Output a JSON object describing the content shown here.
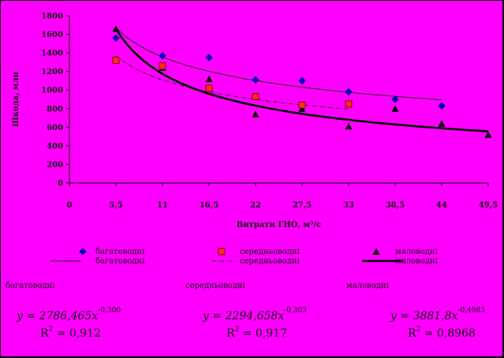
{
  "chart_data": {
    "type": "scatter",
    "ylabel": "Шкода, млн",
    "xlabel": "Витрати ГНО, м³/с",
    "x_ticks": [
      "0",
      "5,5",
      "11",
      "16,5",
      "22",
      "27,5",
      "33",
      "38,5",
      "44",
      "49,5"
    ],
    "y_ticks": [
      "0",
      "200",
      "400",
      "600",
      "800",
      "1000",
      "1200",
      "1400",
      "1600",
      "1800"
    ],
    "xlim": [
      0,
      49.5
    ],
    "ylim": [
      0,
      1800
    ],
    "grid": false,
    "series": [
      {
        "name": "багатоводні",
        "color": "#0000cc",
        "marker": "diamond",
        "x": [
          5.5,
          11,
          16.5,
          22,
          27.5,
          33,
          38.5,
          44
        ],
        "y": [
          1560,
          1370,
          1350,
          1110,
          1100,
          980,
          900,
          830
        ],
        "trend": {
          "name": "багатоводні",
          "a": 2786.465,
          "b": -0.3,
          "x_range": [
            5.5,
            44
          ],
          "style": "solid-thin",
          "color": "#222222"
        }
      },
      {
        "name": "середньоводні",
        "color": "#ff2a1a",
        "marker": "square",
        "x": [
          5.5,
          11,
          16.5,
          22,
          27.5,
          33
        ],
        "y": [
          1320,
          1260,
          1020,
          930,
          840,
          850
        ],
        "trend": {
          "name": "середньоводні",
          "a": 2294.658,
          "b": -0.303,
          "x_range": [
            5.5,
            33
          ],
          "style": "dash-dot",
          "color": "#222222"
        }
      },
      {
        "name": "маловодні",
        "color": "#000000",
        "marker": "triangle",
        "x": [
          5.5,
          11,
          16.5,
          22,
          27.5,
          33,
          38.5,
          44,
          49.5
        ],
        "y": [
          1660,
          1240,
          1120,
          740,
          800,
          610,
          800,
          640,
          520
        ],
        "trend": {
          "name": "маловодні",
          "a": 3881.8,
          "b": -0.4983,
          "x_range": [
            5.5,
            49.5
          ],
          "style": "solid-thick",
          "color": "#000000"
        }
      }
    ]
  },
  "equations": [
    {
      "name": "багатоводні",
      "formula": "y = 2786,465x",
      "exponent": "-0,300",
      "r2": "= 0,912"
    },
    {
      "name": "середньоводні",
      "formula": "y = 2294,658x",
      "exponent": "-0,303",
      "r2": "= 0,917"
    },
    {
      "name": "маловодні",
      "formula": "y = 3881,8x",
      "exponent": "-0,4983",
      "r2": "= 0,8968"
    }
  ],
  "r2_label": "R",
  "r2_exp": "2"
}
